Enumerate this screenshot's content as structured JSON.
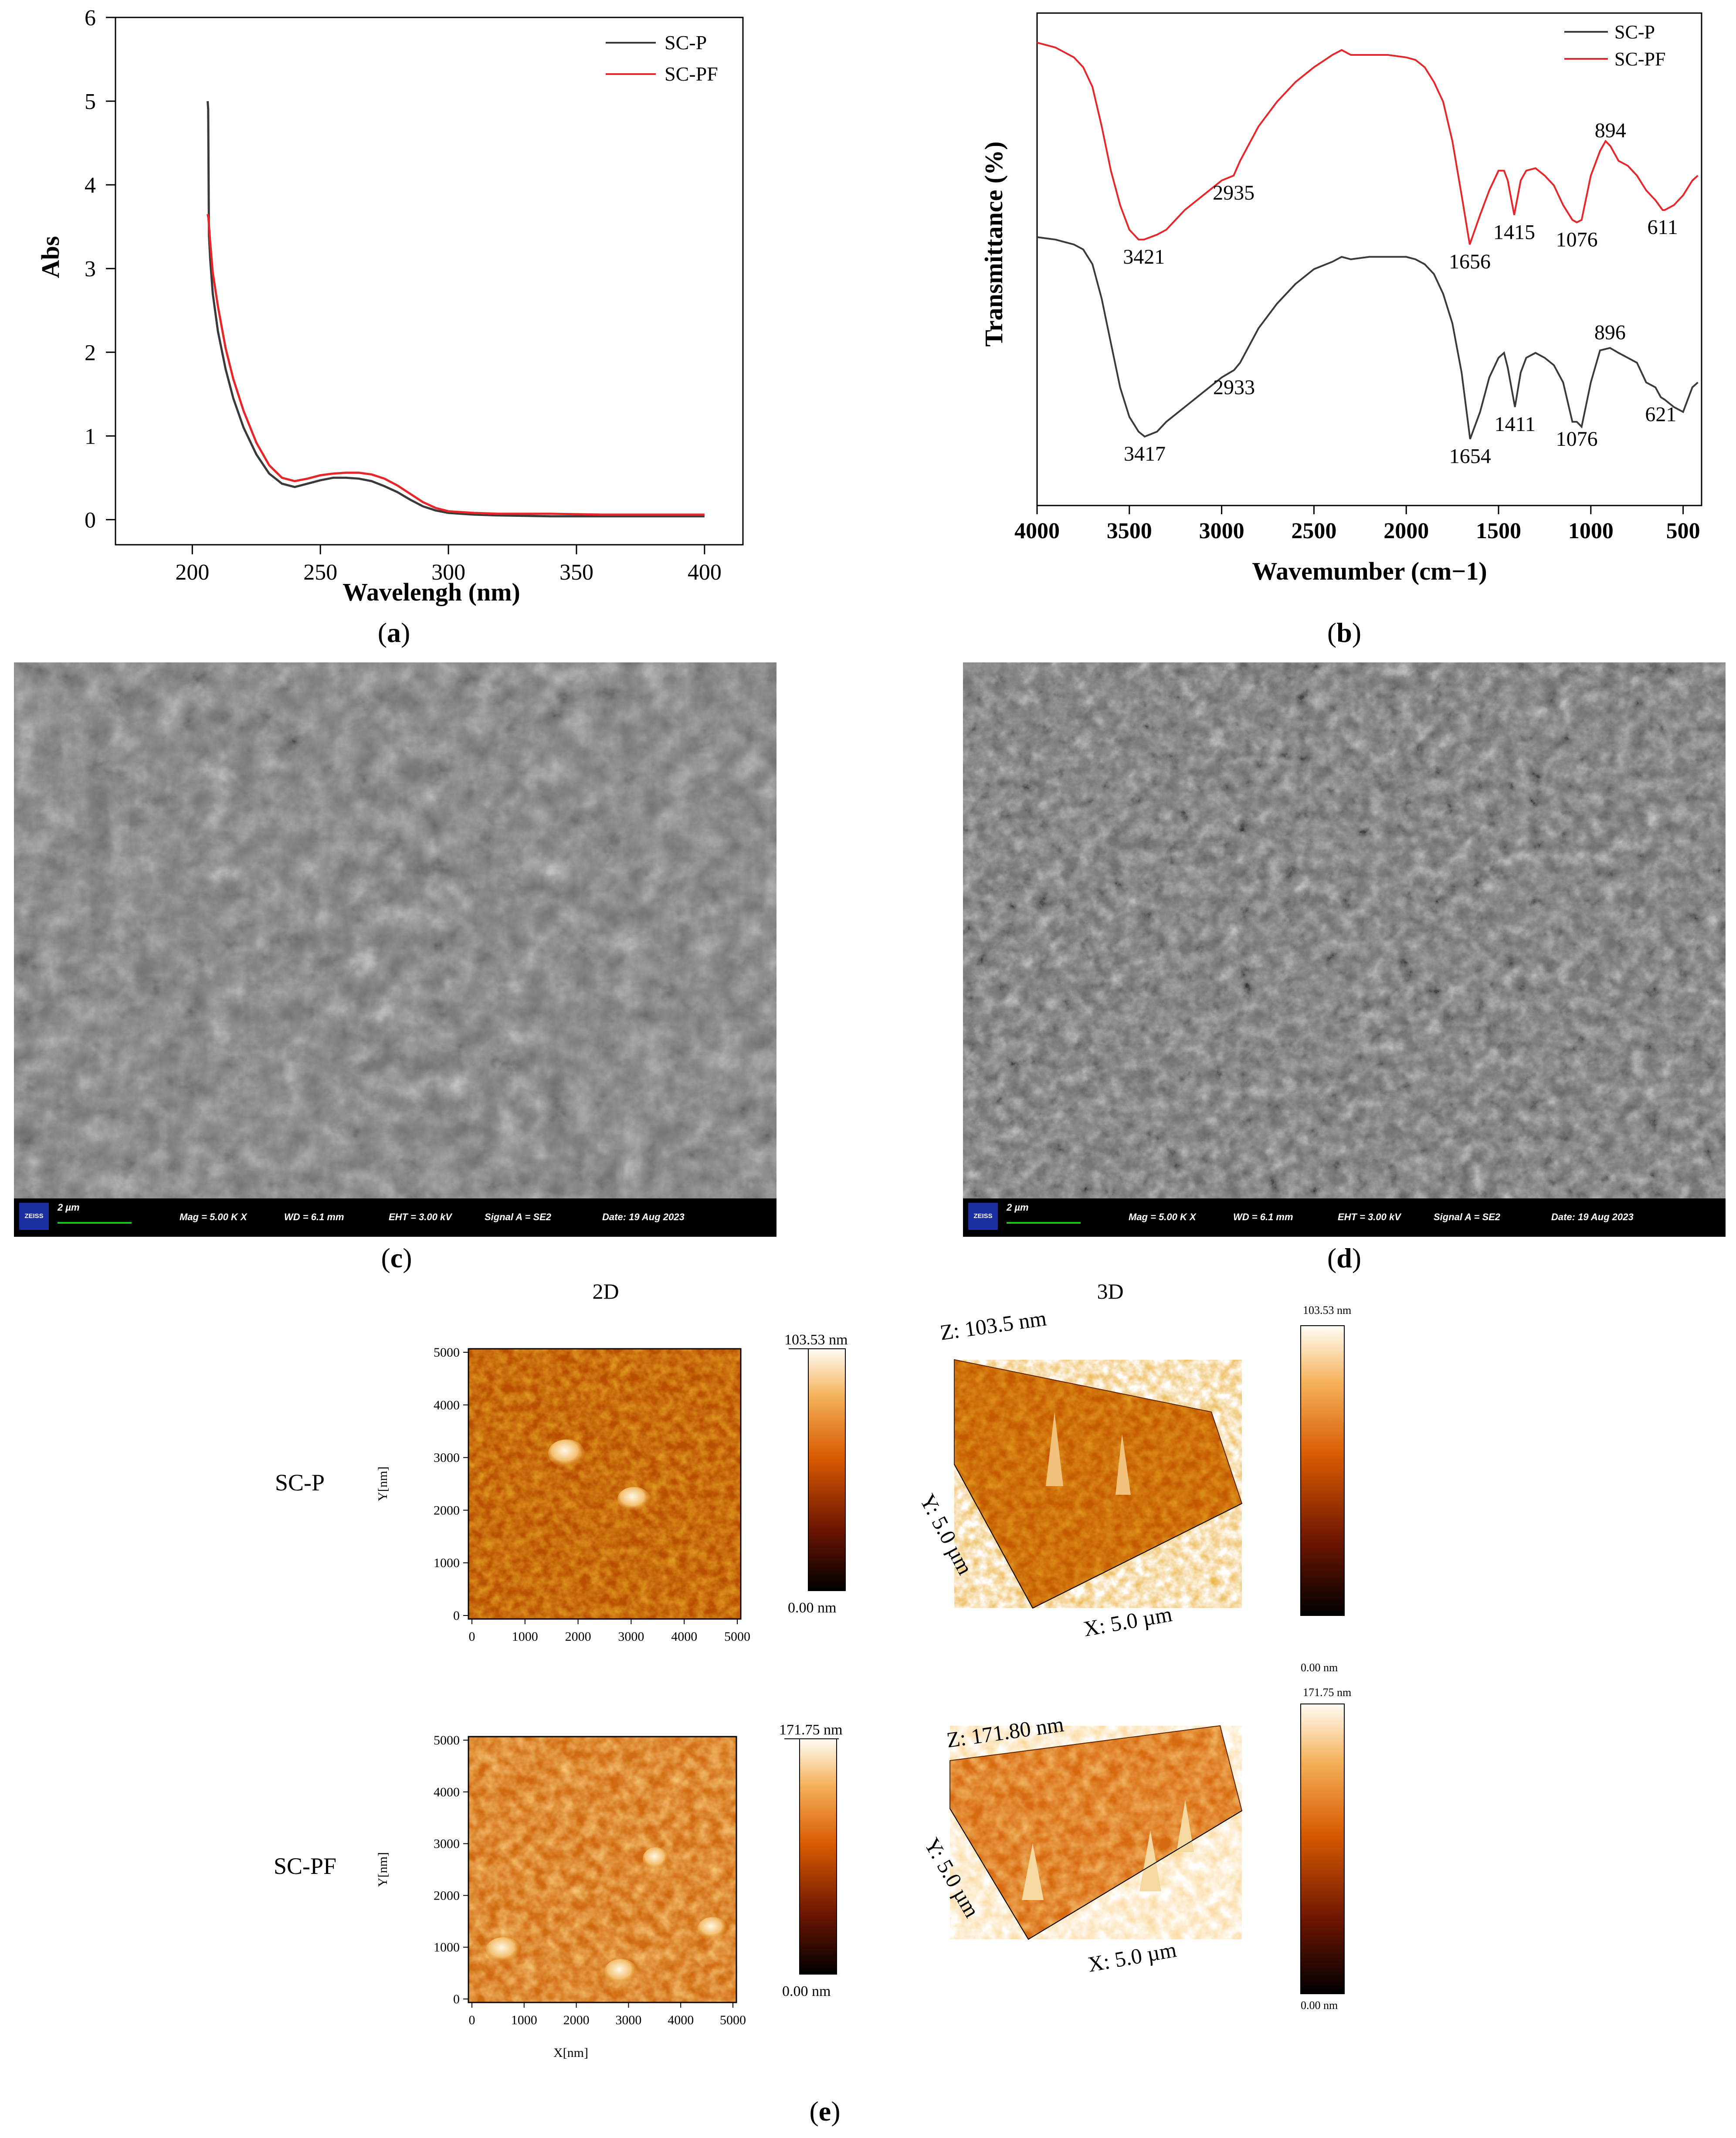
{
  "panels": {
    "a": {
      "label_open": "(",
      "label_letter": "a",
      "label_close": ")"
    },
    "b": {
      "label_open": "(",
      "label_letter": "b",
      "label_close": ")"
    },
    "c": {
      "label_open": "(",
      "label_letter": "c",
      "label_close": ")"
    },
    "d": {
      "label_open": "(",
      "label_letter": "d",
      "label_close": ")"
    },
    "e": {
      "label_open": "(",
      "label_letter": "e",
      "label_close": ")"
    }
  },
  "chart_data": [
    {
      "type": "line",
      "panel": "a",
      "xlabel": "Wavelengh (nm)",
      "ylabel": "Abs",
      "xlim": [
        170,
        415
      ],
      "ylim": [
        -0.3,
        6
      ],
      "xticks": [
        200,
        250,
        300,
        350,
        400
      ],
      "yticks": [
        0,
        1,
        2,
        3,
        4,
        5,
        6
      ],
      "legend_position": "top-right",
      "series": [
        {
          "name": "SC-P",
          "color": "#3a3a3a",
          "x": [
            206,
            206.2,
            206.5,
            207,
            208,
            210,
            213,
            216,
            220,
            225,
            230,
            235,
            240,
            245,
            250,
            255,
            260,
            265,
            270,
            275,
            280,
            285,
            290,
            295,
            300,
            310,
            320,
            340,
            360,
            380,
            400
          ],
          "y": [
            5.0,
            4.9,
            3.4,
            3.1,
            2.7,
            2.25,
            1.8,
            1.45,
            1.1,
            0.78,
            0.55,
            0.43,
            0.39,
            0.43,
            0.47,
            0.5,
            0.5,
            0.49,
            0.46,
            0.4,
            0.33,
            0.24,
            0.16,
            0.11,
            0.08,
            0.06,
            0.05,
            0.04,
            0.04,
            0.04,
            0.04
          ]
        },
        {
          "name": "SC-PF",
          "color": "#e8262a",
          "x": [
            206,
            206.3,
            207,
            208,
            210,
            213,
            216,
            220,
            225,
            230,
            235,
            240,
            245,
            250,
            255,
            260,
            265,
            270,
            275,
            280,
            285,
            290,
            295,
            300,
            310,
            320,
            340,
            360,
            380,
            400
          ],
          "y": [
            3.65,
            3.6,
            3.3,
            2.95,
            2.55,
            2.05,
            1.68,
            1.3,
            0.92,
            0.65,
            0.5,
            0.46,
            0.49,
            0.53,
            0.55,
            0.56,
            0.56,
            0.54,
            0.49,
            0.41,
            0.31,
            0.21,
            0.14,
            0.1,
            0.08,
            0.07,
            0.07,
            0.06,
            0.06,
            0.06
          ]
        }
      ]
    },
    {
      "type": "line",
      "panel": "b",
      "xlabel": "Wavemumber (cm−1)",
      "ylabel": "Transmittance (%)",
      "xlim": [
        4000,
        400
      ],
      "ylim": [
        0,
        100
      ],
      "xticks": [
        4000,
        3500,
        3000,
        2500,
        2000,
        1500,
        1000,
        500
      ],
      "yticks": [],
      "legend_position": "top-right",
      "series": [
        {
          "name": "SC-P",
          "color": "#3a3a3a",
          "x": [
            4000,
            3900,
            3800,
            3750,
            3700,
            3650,
            3600,
            3550,
            3500,
            3450,
            3417,
            3350,
            3300,
            3200,
            3100,
            3000,
            2933,
            2900,
            2800,
            2700,
            2600,
            2500,
            2400,
            2350,
            2300,
            2200,
            2100,
            2000,
            1950,
            1900,
            1850,
            1800,
            1750,
            1700,
            1654,
            1600,
            1550,
            1500,
            1470,
            1450,
            1411,
            1380,
            1350,
            1300,
            1250,
            1200,
            1150,
            1100,
            1076,
            1050,
            1000,
            950,
            896,
            850,
            800,
            750,
            700,
            650,
            621,
            600,
            550,
            500,
            450,
            420
          ],
          "y": [
            54.5,
            54,
            53,
            52,
            49,
            42,
            33,
            24,
            18,
            15,
            14,
            15,
            17,
            20,
            23,
            26,
            27.5,
            29,
            36,
            41,
            45,
            48,
            49.5,
            50.5,
            50,
            50.5,
            50.5,
            50.5,
            50,
            49,
            47,
            43,
            37,
            27,
            13.5,
            19,
            26,
            30,
            31,
            28,
            20,
            27,
            30,
            31,
            30,
            28.5,
            25,
            17,
            17,
            16,
            25,
            31.5,
            32,
            31,
            30,
            29,
            25,
            24,
            22,
            21.5,
            20,
            19,
            24,
            25
          ]
        },
        {
          "name": "SC-PF",
          "color": "#e8262a",
          "x": [
            4000,
            3900,
            3850,
            3800,
            3750,
            3700,
            3650,
            3600,
            3550,
            3500,
            3450,
            3421,
            3350,
            3300,
            3200,
            3100,
            3000,
            2935,
            2900,
            2800,
            2700,
            2600,
            2500,
            2400,
            2350,
            2300,
            2200,
            2100,
            2000,
            1950,
            1900,
            1850,
            1800,
            1750,
            1700,
            1656,
            1600,
            1550,
            1500,
            1470,
            1450,
            1415,
            1380,
            1350,
            1300,
            1250,
            1200,
            1150,
            1100,
            1076,
            1050,
            1000,
            950,
            920,
            894,
            850,
            800,
            750,
            700,
            650,
            611,
            600,
            550,
            500,
            450,
            420
          ],
          "y": [
            94,
            93,
            92,
            91,
            89,
            85,
            77,
            68,
            61,
            56,
            54,
            54,
            55,
            56,
            60,
            63,
            66,
            67,
            70,
            77,
            82,
            86,
            89,
            91.5,
            92.5,
            91.5,
            91.5,
            91.5,
            91,
            90.5,
            89,
            86,
            82,
            74,
            63,
            53,
            59,
            64,
            68,
            68,
            66,
            59,
            66,
            68,
            68.5,
            67,
            65,
            61,
            58,
            57.5,
            58,
            67,
            72,
            74,
            73,
            70,
            69,
            67,
            64,
            62,
            60,
            60,
            61,
            63,
            66,
            67
          ]
        }
      ],
      "annotations": [
        {
          "text": "3421",
          "x": 3421,
          "y": 54,
          "series": "SC-PF"
        },
        {
          "text": "2935",
          "x": 2935,
          "y": 67,
          "series": "SC-PF"
        },
        {
          "text": "1656",
          "x": 1656,
          "y": 53,
          "series": "SC-PF"
        },
        {
          "text": "1415",
          "x": 1415,
          "y": 59,
          "series": "SC-PF"
        },
        {
          "text": "1076",
          "x": 1076,
          "y": 57.5,
          "series": "SC-PF"
        },
        {
          "text": "894",
          "x": 894,
          "y": 73,
          "series": "SC-PF"
        },
        {
          "text": "611",
          "x": 611,
          "y": 60,
          "series": "SC-PF"
        },
        {
          "text": "3417",
          "x": 3417,
          "y": 14,
          "series": "SC-P"
        },
        {
          "text": "2933",
          "x": 2933,
          "y": 27.5,
          "series": "SC-P"
        },
        {
          "text": "1654",
          "x": 1654,
          "y": 13.5,
          "series": "SC-P"
        },
        {
          "text": "1411",
          "x": 1411,
          "y": 20,
          "series": "SC-P"
        },
        {
          "text": "1076",
          "x": 1076,
          "y": 17,
          "series": "SC-P"
        },
        {
          "text": "896",
          "x": 896,
          "y": 32,
          "series": "SC-P"
        },
        {
          "text": "621",
          "x": 621,
          "y": 22,
          "series": "SC-P"
        }
      ]
    }
  ],
  "sem_c": {
    "scale_label": "2 µm",
    "logo": "ZEISS",
    "mag": "Mag =   5.00 K X",
    "wd": "WD =  6.1 mm",
    "eht": "EHT =  3.00 kV",
    "signal": "Signal A = SE2",
    "date": "Date: 19 Aug 2023"
  },
  "sem_d": {
    "scale_label": "2 µm",
    "logo": "ZEISS",
    "mag": "Mag =   5.00 K X",
    "wd": "WD =  6.1 mm",
    "eht": "EHT =  3.00 kV",
    "signal": "Signal A = SE2",
    "date": "Date: 19 Aug 2023"
  },
  "afm": {
    "header_2d": "2D",
    "header_3d": "3D",
    "x_label": "X[nm]",
    "y_label": "Y[nm]",
    "ticks": [
      "0",
      "1000",
      "2000",
      "3000",
      "4000",
      "5000"
    ],
    "rows": [
      {
        "sample": "SC-P",
        "cbar_max": "103.53 nm",
        "cbar_min": "0.00 nm",
        "z_label": "Z: 103.5 nm",
        "y3d_label": "Y: 5.0 µm",
        "x3d_label": "X: 5.0 µm",
        "cbar3d_max": "103.53 nm",
        "cbar3d_min": "0.00 nm"
      },
      {
        "sample": "SC-PF",
        "cbar_max": "171.75 nm",
        "cbar_min": "0.00 nm",
        "z_label": "Z: 171.80 nm",
        "y3d_label": "Y: 5.0 µm",
        "x3d_label": "X: 5.0 µm",
        "cbar3d_max": "171.75 nm",
        "cbar3d_min": "0.00 nm"
      }
    ]
  }
}
